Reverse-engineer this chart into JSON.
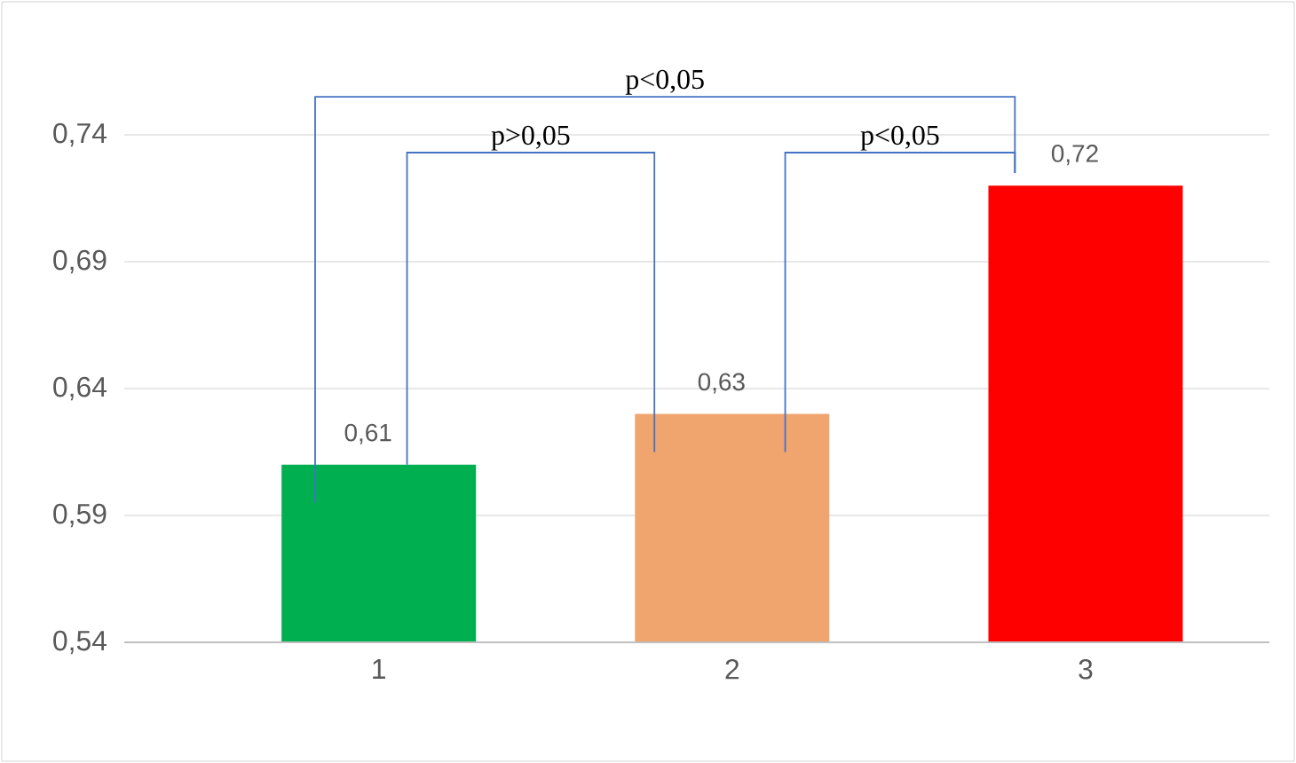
{
  "chart_data": {
    "type": "bar",
    "categories": [
      "1",
      "2",
      "3"
    ],
    "values": [
      0.61,
      0.63,
      0.72
    ],
    "colors": [
      "#00b050",
      "#f0a46e",
      "#ff0000"
    ],
    "value_labels": [
      "0,61",
      "0,63",
      "0,72"
    ],
    "ylim": [
      0.54,
      0.74
    ],
    "yticks": [
      {
        "value": 0.54,
        "label": "0,54"
      },
      {
        "value": 0.59,
        "label": "0,59"
      },
      {
        "value": 0.64,
        "label": "0,64"
      },
      {
        "value": 0.69,
        "label": "0,69"
      },
      {
        "value": 0.74,
        "label": "0,74"
      }
    ],
    "grid": "y",
    "annotations": [
      "p<0,05",
      "p>0,05",
      "p<0,05"
    ]
  }
}
